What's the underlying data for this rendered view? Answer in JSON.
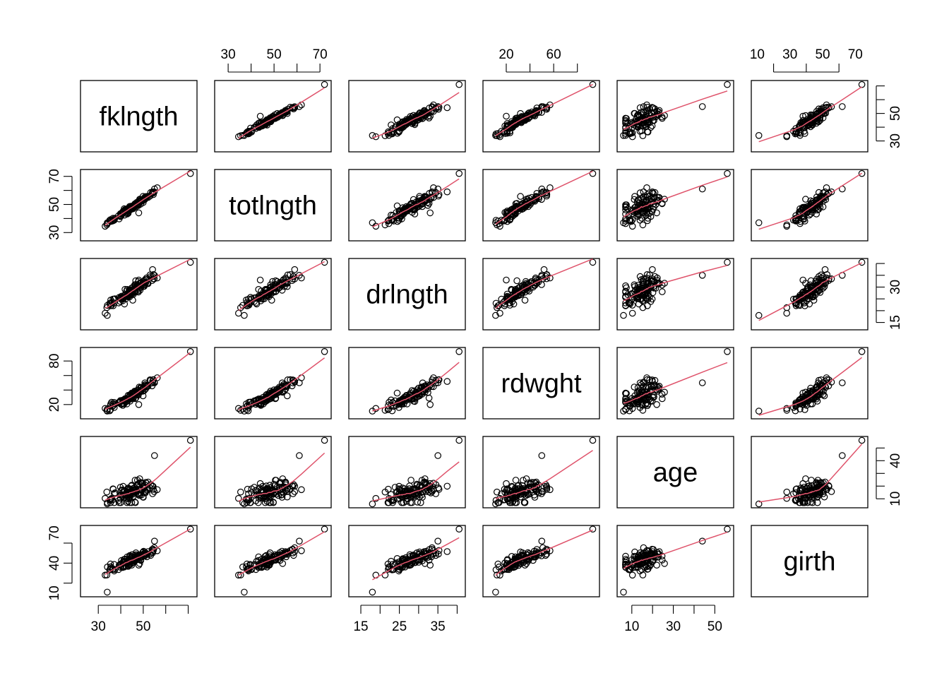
{
  "chart_data": {
    "type": "scatter",
    "subtype": "scatterplot-matrix",
    "panel_smoother": "loess line",
    "colors": {
      "points": "#000000",
      "smoother": "#DF536B"
    },
    "variables": [
      {
        "name": "fklngth",
        "range": [
          24,
          72
        ],
        "ticks": [
          30,
          50
        ],
        "tick_side": "bottom",
        "right_ticks": [
          30,
          40,
          50
        ]
      },
      {
        "name": "totlngth",
        "range": [
          26,
          73
        ],
        "ticks": [
          30,
          50,
          70
        ],
        "tick_side": "top",
        "left_ticks": [
          30,
          40,
          50,
          60,
          70
        ]
      },
      {
        "name": "drlngth",
        "range": [
          13,
          41
        ],
        "ticks": [
          15,
          25,
          35
        ],
        "tick_side": "bottom",
        "right_ticks": [
          15,
          20,
          25,
          30,
          35
        ]
      },
      {
        "name": "rdwght",
        "range": [
          4,
          95
        ],
        "ticks": [
          20,
          60
        ],
        "tick_side": "top",
        "left_ticks": [
          20,
          40,
          60,
          80
        ]
      },
      {
        "name": "age",
        "range": [
          5,
          57
        ],
        "ticks": [
          10,
          30,
          50
        ],
        "tick_side": "bottom",
        "right_ticks": [
          10,
          20,
          30,
          40
        ]
      },
      {
        "name": "girth",
        "range": [
          9,
          75
        ],
        "ticks": [
          10,
          30,
          50,
          70
        ],
        "tick_side": "top",
        "left_ticks": [
          10,
          20,
          30,
          40,
          50,
          60,
          70
        ]
      }
    ],
    "tick_labels": {
      "top": {
        "1": [
          "30",
          "50",
          "70"
        ],
        "3": [
          "20",
          "60"
        ],
        "5": [
          "10",
          "30",
          "50",
          "70"
        ]
      },
      "bottom": {
        "0": [
          "30",
          "50"
        ],
        "2": [
          "15",
          "25",
          "35"
        ],
        "4": [
          "10",
          "30",
          "50"
        ]
      },
      "left": {
        "1": [
          "30",
          "50",
          "70"
        ],
        "3": [
          "20",
          "80"
        ],
        "5": [
          "10",
          "40",
          "70"
        ]
      },
      "right": {
        "0": [
          "30",
          "50"
        ],
        "2": [
          "15",
          "30"
        ],
        "4": [
          "10",
          "40"
        ]
      }
    },
    "n_points": 118,
    "note": "Pairwise scatterplots of fish measurements; each off-diagonal panel plots column variable (x) vs row variable (y)."
  }
}
